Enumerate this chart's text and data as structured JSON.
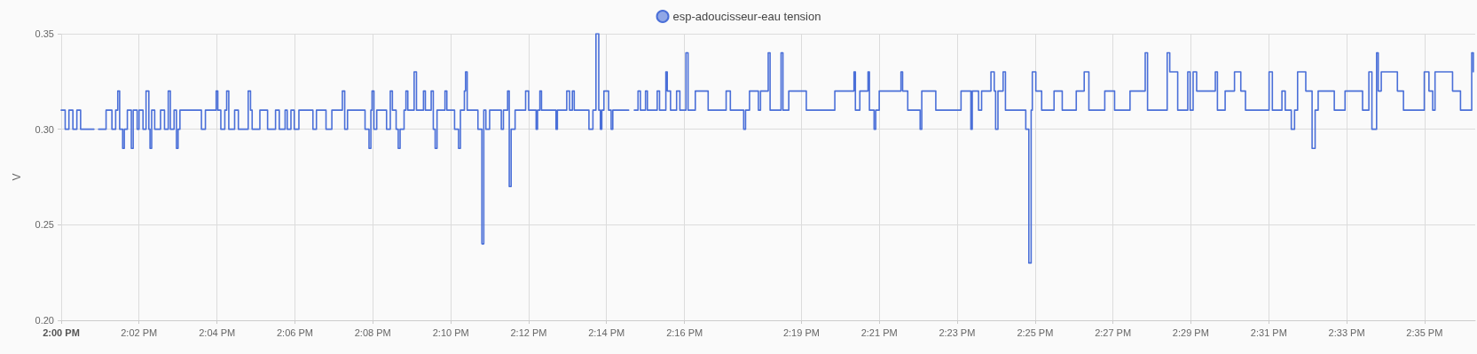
{
  "chart_data": {
    "type": "step",
    "ylabel": "V",
    "x": [
      14.0,
      14.0017,
      14.0033,
      14.005,
      14.0067,
      14.0083,
      14.014,
      14.0142,
      14.016,
      14.0192,
      14.0217,
      14.0233,
      14.0242,
      14.025,
      14.0263,
      14.027,
      14.0283,
      14.03,
      14.0308,
      14.0325,
      14.0333,
      14.035,
      14.0363,
      14.0375,
      14.038,
      14.0387,
      14.04,
      14.0425,
      14.0442,
      14.0458,
      14.0467,
      14.0483,
      14.0493,
      14.05,
      14.0508,
      14.06,
      14.0617,
      14.0663,
      14.067,
      14.0683,
      14.07,
      14.0708,
      14.0717,
      14.0742,
      14.0758,
      14.08,
      14.081,
      14.0817,
      14.085,
      14.0883,
      14.0917,
      14.0933,
      14.0958,
      14.0967,
      14.0983,
      14.0997,
      14.1017,
      14.1077,
      14.1092,
      14.1133,
      14.1158,
      14.1203,
      14.1213,
      14.1225,
      14.13,
      14.1317,
      14.1325,
      14.133,
      14.1338,
      14.135,
      14.1392,
      14.1408,
      14.1417,
      14.1433,
      14.1442,
      14.145,
      14.1467,
      14.1475,
      14.1483,
      14.151,
      14.152,
      14.155,
      14.1558,
      14.1583,
      14.1592,
      14.16,
      14.1608,
      14.1642,
      14.165,
      14.1683,
      14.17,
      14.1708,
      14.1725,
      14.173,
      14.1737,
      14.1783,
      14.18,
      14.1808,
      14.1817,
      14.1833,
      14.1883,
      14.1892,
      14.191,
      14.1917,
      14.1925,
      14.1942,
      14.1987,
      14.2,
      14.2032,
      14.2038,
      14.2048,
      14.2055,
      14.2117,
      14.2123,
      14.2163,
      14.2175,
      14.2187,
      14.2195,
      14.2258,
      14.2275,
      14.2288,
      14.23,
      14.2307,
      14.2313,
      14.2322,
      14.2342,
      14.2353,
      14.236,
      14.2428,
      14.243,
      14.2452,
      14.2468,
      14.2478,
      14.25,
      14.2508,
      14.255,
      14.256,
      14.2587,
      14.2593,
      14.2607,
      14.2633,
      14.2647,
      14.2673,
      14.2682,
      14.2713,
      14.2768,
      14.2845,
      14.2863,
      14.292,
      14.2928,
      14.2945,
      14.2983,
      14.2992,
      14.3025,
      14.3033,
      14.308,
      14.3088,
      14.3113,
      14.3188,
      14.331,
      14.3392,
      14.3398,
      14.3417,
      14.3452,
      14.3458,
      14.3478,
      14.3485,
      14.35,
      14.3593,
      14.36,
      14.3622,
      14.3675,
      14.3682,
      14.3742,
      14.385,
      14.3892,
      14.3898,
      14.3925,
      14.3938,
      14.3978,
      14.3992,
      14.3998,
      14.4008,
      14.403,
      14.404,
      14.4127,
      14.414,
      14.415,
      14.4155,
      14.417,
      14.4195,
      14.4248,
      14.4283,
      14.4343,
      14.4377,
      14.4397,
      14.4465,
      14.4507,
      14.4573,
      14.4638,
      14.4648,
      14.4732,
      14.4743,
      14.4777,
      14.482,
      14.483,
      14.4843,
      14.4858,
      14.4938,
      14.4947,
      14.498,
      14.502,
      14.5047,
      14.5067,
      14.5168,
      14.5182,
      14.5223,
      14.5237,
      14.5263,
      14.5277,
      14.529,
      14.5325,
      14.5352,
      14.5365,
      14.5378,
      14.5447,
      14.5493,
      14.5568,
      14.5595,
      14.5608,
      14.5628,
      14.5635,
      14.5648,
      14.5717,
      14.5743,
      14.5832,
      14.5852,
      14.5868,
      14.5878,
      14.5953,
      14.5987,
      14.6035,
      14.6042
    ],
    "series": [
      {
        "name": "esp-adoucisseur-eau tension",
        "color": "#4a6fd8",
        "values": [
          0.31,
          0.3,
          0.31,
          0.3,
          0.31,
          0.3,
          0.3,
          null,
          0.3,
          0.31,
          0.3,
          0.31,
          0.32,
          0.3,
          0.29,
          0.3,
          0.31,
          0.29,
          0.31,
          0.3,
          0.31,
          0.3,
          0.32,
          0.3,
          0.29,
          0.31,
          0.3,
          0.31,
          0.3,
          0.32,
          0.3,
          0.31,
          0.29,
          0.3,
          0.31,
          0.3,
          0.31,
          0.32,
          0.31,
          0.3,
          0.31,
          0.32,
          0.3,
          0.31,
          0.3,
          0.32,
          0.31,
          0.3,
          0.31,
          0.3,
          0.31,
          0.3,
          0.31,
          0.3,
          0.31,
          0.3,
          0.31,
          0.3,
          0.31,
          0.3,
          0.31,
          0.32,
          0.3,
          0.31,
          0.3,
          0.29,
          0.31,
          0.32,
          0.3,
          0.31,
          0.3,
          0.32,
          0.31,
          0.3,
          0.29,
          0.3,
          0.31,
          0.32,
          0.31,
          0.33,
          0.31,
          0.32,
          0.31,
          0.32,
          0.3,
          0.29,
          0.31,
          0.32,
          0.31,
          0.3,
          0.29,
          0.31,
          0.32,
          0.33,
          0.31,
          0.3,
          0.24,
          0.31,
          0.3,
          0.31,
          0.3,
          0.31,
          0.32,
          0.27,
          0.3,
          0.31,
          0.32,
          0.31,
          0.3,
          0.31,
          0.32,
          0.31,
          0.3,
          0.31,
          0.32,
          0.31,
          0.32,
          0.31,
          0.3,
          0.31,
          0.35,
          0.31,
          0.3,
          0.31,
          0.32,
          0.31,
          0.3,
          0.31,
          0.31,
          null,
          0.31,
          0.32,
          0.31,
          0.32,
          0.31,
          0.32,
          0.31,
          0.33,
          0.32,
          0.31,
          0.32,
          0.31,
          0.34,
          0.31,
          0.32,
          0.31,
          0.32,
          0.31,
          0.3,
          0.31,
          0.32,
          0.31,
          0.32,
          0.34,
          0.31,
          0.34,
          0.31,
          0.32,
          0.31,
          0.32,
          0.33,
          0.31,
          0.32,
          0.33,
          0.31,
          0.3,
          0.31,
          0.32,
          0.33,
          0.32,
          0.31,
          0.3,
          0.32,
          0.31,
          0.32,
          0.3,
          0.32,
          0.31,
          0.32,
          0.33,
          0.32,
          0.3,
          0.32,
          0.33,
          0.31,
          0.3,
          0.23,
          0.31,
          0.33,
          0.32,
          0.31,
          0.32,
          0.31,
          0.32,
          0.33,
          0.31,
          0.32,
          0.31,
          0.32,
          0.34,
          0.31,
          0.34,
          0.33,
          0.31,
          0.33,
          0.31,
          0.33,
          0.32,
          0.33,
          0.31,
          0.32,
          0.33,
          0.32,
          0.31,
          0.33,
          0.31,
          0.32,
          0.31,
          0.3,
          0.31,
          0.33,
          0.32,
          0.29,
          0.31,
          0.32,
          0.31,
          0.32,
          0.31,
          0.33,
          0.3,
          0.34,
          0.32,
          0.33,
          0.32,
          0.31,
          0.33,
          0.32,
          0.31,
          0.33,
          0.32,
          0.31,
          0.34,
          0.33
        ]
      }
    ],
    "xlim": [
      14.0,
      14.605
    ],
    "xticks": [
      {
        "value": 14.0,
        "label": "2:00 PM"
      },
      {
        "value": 14.0333,
        "label": "2:02 PM"
      },
      {
        "value": 14.0667,
        "label": "2:04 PM"
      },
      {
        "value": 14.1,
        "label": "2:06 PM"
      },
      {
        "value": 14.1333,
        "label": "2:08 PM"
      },
      {
        "value": 14.1667,
        "label": "2:10 PM"
      },
      {
        "value": 14.2,
        "label": "2:12 PM"
      },
      {
        "value": 14.2333,
        "label": "2:14 PM"
      },
      {
        "value": 14.2667,
        "label": "2:16 PM"
      },
      {
        "value": 14.3167,
        "label": "2:19 PM"
      },
      {
        "value": 14.35,
        "label": "2:21 PM"
      },
      {
        "value": 14.3833,
        "label": "2:23 PM"
      },
      {
        "value": 14.4167,
        "label": "2:25 PM"
      },
      {
        "value": 14.45,
        "label": "2:27 PM"
      },
      {
        "value": 14.4833,
        "label": "2:29 PM"
      },
      {
        "value": 14.5167,
        "label": "2:31 PM"
      },
      {
        "value": 14.55,
        "label": "2:33 PM"
      },
      {
        "value": 14.5833,
        "label": "2:35 PM"
      }
    ],
    "ylim": [
      0.2,
      0.35
    ],
    "yticks": [
      {
        "value": 0.2,
        "label": "0.20"
      },
      {
        "value": 0.25,
        "label": "0.25"
      },
      {
        "value": 0.3,
        "label": "0.30"
      },
      {
        "value": 0.35,
        "label": "0.35"
      }
    ],
    "grid": true,
    "legend": "top",
    "marker": "none",
    "line_style": "solid"
  }
}
